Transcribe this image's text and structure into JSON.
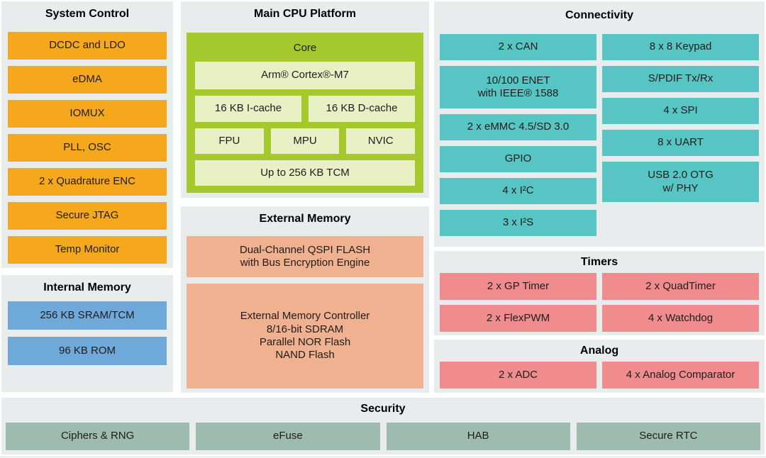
{
  "colors": {
    "panel_bg": "#e8eced",
    "orange": "#f6a81c",
    "teal": "#57c5c3",
    "pink": "#f08b8e",
    "sage": "#9dbcaf",
    "blue": "#6fa9da",
    "green": "#a5c82d",
    "light_green": "#e9f0c6",
    "peach": "#f0b190",
    "text": "#201c1c"
  },
  "system_control": {
    "title": "System Control",
    "blocks": [
      "DCDC and LDO",
      "eDMA",
      "IOMUX",
      "PLL, OSC",
      "2 x Quadrature ENC",
      "Secure JTAG",
      "Temp Monitor"
    ]
  },
  "internal_memory": {
    "title": "Internal Memory",
    "blocks": [
      "256 KB SRAM/TCM",
      "96 KB ROM"
    ]
  },
  "main_cpu": {
    "title": "Main CPU Platform",
    "core_label": "Core",
    "cpu": "Arm® Cortex®-M7",
    "icache": "16 KB I-cache",
    "dcache": "16 KB D-cache",
    "fpu": "FPU",
    "mpu": "MPU",
    "nvic": "NVIC",
    "tcm": "Up to 256 KB TCM"
  },
  "external_memory": {
    "title": "External Memory",
    "qspi": "Dual-Channel QSPI FLASH\nwith Bus Encryption Engine",
    "emc": "External Memory Controller\n8/16-bit SDRAM\nParallel NOR Flash\nNAND Flash"
  },
  "connectivity": {
    "title": "Connectivity",
    "left": [
      "2 x CAN",
      "10/100 ENET\nwith IEEE® 1588",
      "2 x eMMC 4.5/SD 3.0",
      "GPIO",
      "4 x I²C",
      "3 x I²S"
    ],
    "right": [
      "8 x 8 Keypad",
      "S/PDIF Tx/Rx",
      "4 x SPI",
      "8 x UART",
      "USB 2.0 OTG\nw/ PHY"
    ]
  },
  "timers": {
    "title": "Timers",
    "blocks": [
      "2 x GP Timer",
      "2 x QuadTimer",
      "2 x FlexPWM",
      "4 x Watchdog"
    ]
  },
  "analog": {
    "title": "Analog",
    "blocks": [
      "2 x ADC",
      "4 x Analog Comparator"
    ]
  },
  "security": {
    "title": "Security",
    "blocks": [
      "Ciphers & RNG",
      "eFuse",
      "HAB",
      "Secure RTC"
    ]
  }
}
